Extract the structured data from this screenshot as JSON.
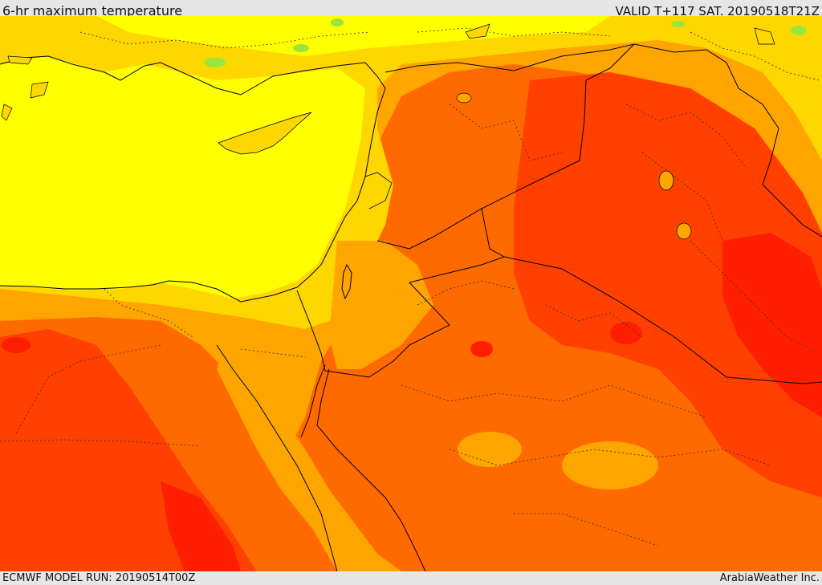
{
  "header": {
    "title": "6-hr maximum temperature",
    "valid": "VALID T+117 SAT. 20190518T21Z"
  },
  "footer": {
    "model_run": "ECMWF MODEL RUN: 20190514T00Z",
    "credit": "ArabiaWeather Inc."
  },
  "map": {
    "palette": {
      "green": "#9be63c",
      "yellow": "#ffff00",
      "gold": "#ffd700",
      "amber": "#ffa500",
      "orange": "#ff6a00",
      "red_orange": "#ff4000",
      "red": "#ff1e00"
    },
    "features": [
      "coastlines",
      "country-borders",
      "province-borders"
    ]
  }
}
